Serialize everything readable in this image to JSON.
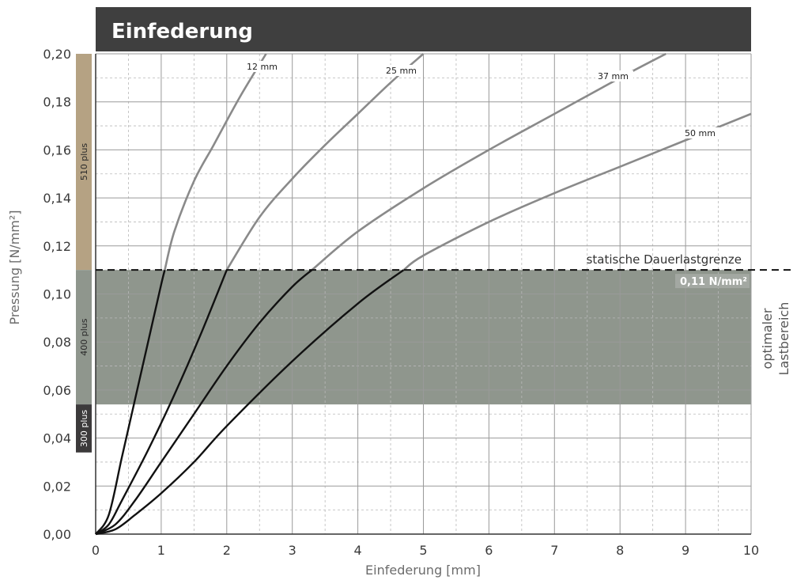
{
  "chart_data": {
    "type": "line",
    "title": "Einfederung",
    "xlabel": "Einfederung [mm]",
    "ylabel": "Pressung [N/mm²]",
    "xlim": [
      0,
      10
    ],
    "ylim": [
      0,
      0.2
    ],
    "x_ticks": [
      "0",
      "1",
      "2",
      "3",
      "4",
      "5",
      "6",
      "7",
      "8",
      "9",
      "10"
    ],
    "y_ticks": [
      "0,00",
      "0,02",
      "0,04",
      "0,06",
      "0,08",
      "0,10",
      "0,12",
      "0,14",
      "0,16",
      "0,18",
      "0,20"
    ],
    "grid": true,
    "series": [
      {
        "name": "12 mm",
        "x": [
          0,
          0.2,
          0.4,
          0.6,
          0.8,
          1.0,
          1.2,
          1.5,
          1.8,
          2.2,
          2.6
        ],
        "y": [
          0,
          0.008,
          0.032,
          0.056,
          0.08,
          0.104,
          0.126,
          0.147,
          0.162,
          0.182,
          0.2
        ]
      },
      {
        "name": "25 mm",
        "x": [
          0,
          0.2,
          0.4,
          0.8,
          1.2,
          1.6,
          2.0,
          2.5,
          3.0,
          3.5,
          4.0,
          4.5,
          5.0
        ],
        "y": [
          0,
          0.004,
          0.014,
          0.035,
          0.058,
          0.083,
          0.11,
          0.132,
          0.148,
          0.162,
          0.175,
          0.188,
          0.2
        ]
      },
      {
        "name": "37 mm",
        "x": [
          0,
          0.3,
          0.6,
          1.0,
          1.5,
          2.0,
          2.5,
          3.0,
          3.3,
          4.0,
          5.0,
          6.0,
          7.0,
          8.0,
          8.7
        ],
        "y": [
          0,
          0.004,
          0.014,
          0.03,
          0.05,
          0.07,
          0.088,
          0.103,
          0.11,
          0.126,
          0.144,
          0.16,
          0.175,
          0.19,
          0.2
        ]
      },
      {
        "name": "50 mm",
        "x": [
          0,
          0.3,
          0.6,
          1.0,
          1.5,
          2.0,
          3.0,
          4.0,
          4.7,
          5.0,
          6.0,
          7.0,
          8.0,
          9.0,
          10.0
        ],
        "y": [
          0,
          0.002,
          0.008,
          0.017,
          0.03,
          0.045,
          0.072,
          0.096,
          0.11,
          0.116,
          0.13,
          0.142,
          0.153,
          0.164,
          0.175
        ]
      }
    ],
    "reference_line": {
      "label": "statische Dauerlastgrenze",
      "value": 0.11,
      "value_label": "0,11 N/mm²"
    },
    "optimal_range": {
      "label_line1": "optimaler",
      "label_line2": "Lastbereich",
      "y_from": 0.054,
      "y_to": 0.11
    },
    "product_bands": [
      {
        "name": "510 plus",
        "y_from": 0.11,
        "y_to": 0.2,
        "color": "#b5a283"
      },
      {
        "name": "400 plus",
        "y_from": 0.054,
        "y_to": 0.11,
        "color": "#8f968d"
      },
      {
        "name": "300 plus",
        "y_from": 0.034,
        "y_to": 0.054,
        "color": "#3c3a3b"
      }
    ],
    "colors": {
      "header": "#3f3f3f",
      "band": "#8f968d",
      "curve_upper": "#8a8a8a",
      "curve_lower": "#111111"
    }
  }
}
